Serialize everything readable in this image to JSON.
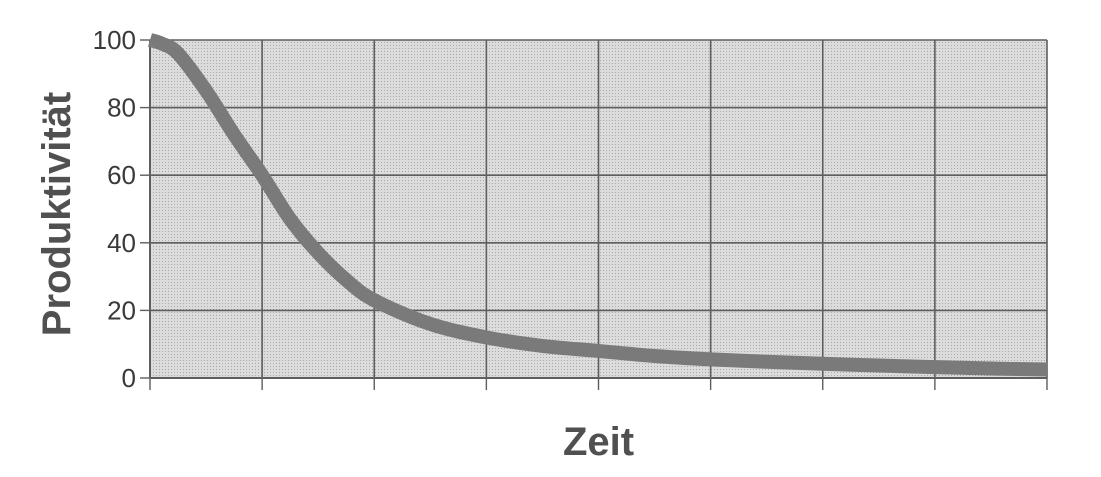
{
  "chart_data": {
    "type": "line",
    "title": "",
    "xlabel": "Zeit",
    "ylabel": "Produktivität",
    "xlim": [
      0,
      8
    ],
    "ylim": [
      0,
      100
    ],
    "yticks": [
      "0",
      "20",
      "40",
      "60",
      "80",
      "100"
    ],
    "x_tick_labels": [],
    "grid": true,
    "legend": "none",
    "colors": {
      "plot_background": "#d6d6d6",
      "grid": "#5e5e5e",
      "line": "#7a7a7a",
      "axis_text": "#3a3a3a",
      "axis_title": "#505050"
    },
    "series": [
      {
        "x": [
          0,
          0.1,
          0.25,
          0.5,
          0.75,
          1.0,
          1.25,
          1.5,
          1.75,
          2.0,
          2.5,
          3.0,
          3.5,
          4.0,
          4.5,
          5.0,
          5.5,
          6.0,
          6.5,
          7.0,
          7.5,
          8.0
        ],
        "values": [
          100,
          99,
          96,
          85,
          72,
          60,
          47,
          37,
          29,
          23,
          16,
          12,
          9.5,
          8,
          6.5,
          5.5,
          4.8,
          4.2,
          3.7,
          3.2,
          2.8,
          2.5
        ]
      }
    ]
  }
}
